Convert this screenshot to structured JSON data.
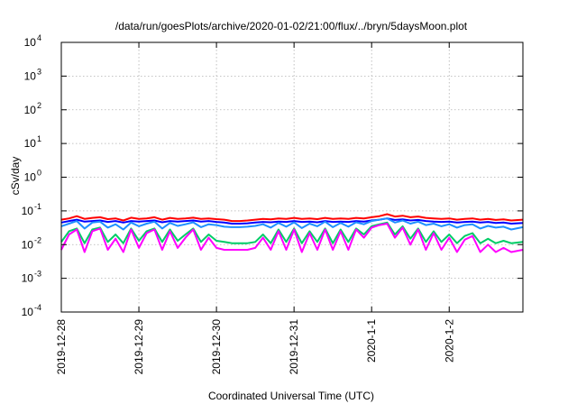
{
  "chart_data": {
    "type": "line",
    "title": "/data/run/goesPlots/archive/2020-01-02/21:00/flux/../bryn/5daysMoon.plot",
    "xlabel": "Coordinated Universal Time (UTC)",
    "ylabel": "cSv/day",
    "yscale": "log",
    "ylim": [
      0.0001,
      10000
    ],
    "xlim": [
      0,
      5.95
    ],
    "grid": true,
    "y_ticks": [
      {
        "value": 0.0001,
        "base": "10",
        "exp": "-4"
      },
      {
        "value": 0.001,
        "base": "10",
        "exp": "-3"
      },
      {
        "value": 0.01,
        "base": "10",
        "exp": "-2"
      },
      {
        "value": 0.1,
        "base": "10",
        "exp": "-1"
      },
      {
        "value": 1,
        "base": "10",
        "exp": "0"
      },
      {
        "value": 10,
        "base": "10",
        "exp": "1"
      },
      {
        "value": 100,
        "base": "10",
        "exp": "2"
      },
      {
        "value": 1000,
        "base": "10",
        "exp": "3"
      },
      {
        "value": 10000,
        "base": "10",
        "exp": "4"
      }
    ],
    "x_ticks": [
      {
        "value": 0,
        "label": "2019-12-28"
      },
      {
        "value": 1,
        "label": "2019-12-29"
      },
      {
        "value": 2,
        "label": "2019-12-30"
      },
      {
        "value": 3,
        "label": "2019-12-31"
      },
      {
        "value": 4,
        "label": "2020-1-1"
      },
      {
        "value": 5,
        "label": "2020-1-2"
      }
    ],
    "series": [
      {
        "color": "#ff0000",
        "x": [
          0,
          0.1,
          0.2,
          0.3,
          0.4,
          0.5,
          0.6,
          0.7,
          0.8,
          0.9,
          1,
          1.1,
          1.2,
          1.3,
          1.4,
          1.5,
          1.6,
          1.7,
          1.8,
          1.9,
          2,
          2.1,
          2.2,
          2.3,
          2.4,
          2.5,
          2.6,
          2.7,
          2.8,
          2.9,
          3,
          3.1,
          3.2,
          3.3,
          3.4,
          3.5,
          3.6,
          3.7,
          3.8,
          3.9,
          4,
          4.1,
          4.2,
          4.3,
          4.4,
          4.5,
          4.6,
          4.7,
          4.8,
          4.9,
          5,
          5.1,
          5.2,
          5.3,
          5.4,
          5.5,
          5.6,
          5.7,
          5.8,
          5.95
        ],
        "values": [
          0.055,
          0.06,
          0.07,
          0.058,
          0.062,
          0.065,
          0.057,
          0.06,
          0.052,
          0.063,
          0.058,
          0.06,
          0.065,
          0.055,
          0.062,
          0.058,
          0.06,
          0.063,
          0.058,
          0.06,
          0.057,
          0.055,
          0.05,
          0.05,
          0.052,
          0.055,
          0.058,
          0.056,
          0.06,
          0.058,
          0.062,
          0.058,
          0.06,
          0.057,
          0.062,
          0.058,
          0.06,
          0.058,
          0.062,
          0.06,
          0.065,
          0.07,
          0.08,
          0.068,
          0.072,
          0.065,
          0.068,
          0.062,
          0.06,
          0.058,
          0.06,
          0.055,
          0.058,
          0.06,
          0.055,
          0.058,
          0.054,
          0.056,
          0.052,
          0.055
        ]
      },
      {
        "color": "#0000ff",
        "x": [
          0,
          0.1,
          0.2,
          0.3,
          0.4,
          0.5,
          0.6,
          0.7,
          0.8,
          0.9,
          1,
          1.1,
          1.2,
          1.3,
          1.4,
          1.5,
          1.6,
          1.7,
          1.8,
          1.9,
          2,
          2.1,
          2.2,
          2.3,
          2.4,
          2.5,
          2.6,
          2.7,
          2.8,
          2.9,
          3,
          3.1,
          3.2,
          3.3,
          3.4,
          3.5,
          3.6,
          3.7,
          3.8,
          3.9,
          4,
          4.1,
          4.2,
          4.3,
          4.4,
          4.5,
          4.6,
          4.7,
          4.8,
          4.9,
          5,
          5.1,
          5.2,
          5.3,
          5.4,
          5.5,
          5.6,
          5.7,
          5.8,
          5.95
        ],
        "values": [
          0.045,
          0.05,
          0.055,
          0.048,
          0.05,
          0.052,
          0.047,
          0.05,
          0.045,
          0.05,
          0.048,
          0.05,
          0.052,
          0.046,
          0.05,
          0.048,
          0.05,
          0.052,
          0.048,
          0.05,
          0.047,
          0.045,
          0.042,
          0.042,
          0.043,
          0.045,
          0.047,
          0.046,
          0.048,
          0.047,
          0.05,
          0.047,
          0.048,
          0.046,
          0.05,
          0.047,
          0.048,
          0.047,
          0.05,
          0.048,
          0.052,
          0.055,
          0.06,
          0.054,
          0.056,
          0.052,
          0.054,
          0.05,
          0.048,
          0.047,
          0.048,
          0.045,
          0.047,
          0.048,
          0.045,
          0.047,
          0.044,
          0.045,
          0.042,
          0.044
        ]
      },
      {
        "color": "#1e90ff",
        "x": [
          0,
          0.1,
          0.2,
          0.3,
          0.4,
          0.5,
          0.6,
          0.7,
          0.8,
          0.9,
          1,
          1.1,
          1.2,
          1.3,
          1.4,
          1.5,
          1.6,
          1.7,
          1.8,
          1.9,
          2,
          2.1,
          2.2,
          2.3,
          2.4,
          2.5,
          2.6,
          2.7,
          2.8,
          2.9,
          3,
          3.1,
          3.2,
          3.3,
          3.4,
          3.5,
          3.6,
          3.7,
          3.8,
          3.9,
          4,
          4.1,
          4.2,
          4.3,
          4.4,
          4.5,
          4.6,
          4.7,
          4.8,
          4.9,
          5,
          5.1,
          5.2,
          5.3,
          5.4,
          5.5,
          5.6,
          5.7,
          5.8,
          5.95
        ],
        "values": [
          0.035,
          0.042,
          0.05,
          0.03,
          0.045,
          0.048,
          0.032,
          0.04,
          0.028,
          0.045,
          0.035,
          0.042,
          0.048,
          0.03,
          0.044,
          0.036,
          0.04,
          0.046,
          0.033,
          0.04,
          0.038,
          0.034,
          0.033,
          0.033,
          0.034,
          0.036,
          0.04,
          0.032,
          0.044,
          0.034,
          0.046,
          0.031,
          0.042,
          0.035,
          0.048,
          0.033,
          0.044,
          0.034,
          0.046,
          0.04,
          0.05,
          0.055,
          0.06,
          0.045,
          0.052,
          0.042,
          0.048,
          0.038,
          0.042,
          0.035,
          0.04,
          0.032,
          0.038,
          0.04,
          0.03,
          0.036,
          0.032,
          0.034,
          0.028,
          0.033
        ]
      },
      {
        "color": "#00cc66",
        "x": [
          0,
          0.1,
          0.2,
          0.3,
          0.4,
          0.5,
          0.6,
          0.7,
          0.8,
          0.9,
          1,
          1.1,
          1.2,
          1.3,
          1.4,
          1.5,
          1.6,
          1.7,
          1.8,
          1.9,
          2,
          2.1,
          2.2,
          2.3,
          2.4,
          2.5,
          2.6,
          2.7,
          2.8,
          2.9,
          3,
          3.1,
          3.2,
          3.3,
          3.4,
          3.5,
          3.6,
          3.7,
          3.8,
          3.9,
          4,
          4.1,
          4.2,
          4.3,
          4.4,
          4.5,
          4.6,
          4.7,
          4.8,
          4.9,
          5,
          5.1,
          5.2,
          5.3,
          5.4,
          5.5,
          5.6,
          5.7,
          5.8,
          5.95
        ],
        "values": [
          0.012,
          0.025,
          0.03,
          0.011,
          0.028,
          0.032,
          0.012,
          0.02,
          0.011,
          0.03,
          0.013,
          0.025,
          0.03,
          0.012,
          0.028,
          0.013,
          0.02,
          0.03,
          0.012,
          0.02,
          0.013,
          0.012,
          0.011,
          0.011,
          0.011,
          0.012,
          0.02,
          0.011,
          0.028,
          0.012,
          0.03,
          0.011,
          0.025,
          0.012,
          0.03,
          0.011,
          0.028,
          0.012,
          0.03,
          0.02,
          0.035,
          0.04,
          0.045,
          0.02,
          0.035,
          0.015,
          0.03,
          0.012,
          0.025,
          0.012,
          0.02,
          0.011,
          0.018,
          0.022,
          0.011,
          0.015,
          0.011,
          0.013,
          0.011,
          0.012
        ]
      },
      {
        "color": "#ff00ff",
        "x": [
          0,
          0.1,
          0.2,
          0.3,
          0.4,
          0.5,
          0.6,
          0.7,
          0.8,
          0.9,
          1,
          1.1,
          1.2,
          1.3,
          1.4,
          1.5,
          1.6,
          1.7,
          1.8,
          1.9,
          2,
          2.1,
          2.2,
          2.3,
          2.4,
          2.5,
          2.6,
          2.7,
          2.8,
          2.9,
          3,
          3.1,
          3.2,
          3.3,
          3.4,
          3.5,
          3.6,
          3.7,
          3.8,
          3.9,
          4,
          4.1,
          4.2,
          4.3,
          4.4,
          4.5,
          4.6,
          4.7,
          4.8,
          4.9,
          5,
          5.1,
          5.2,
          5.3,
          5.4,
          5.5,
          5.6,
          5.7,
          5.8,
          5.95
        ],
        "values": [
          0.007,
          0.02,
          0.028,
          0.006,
          0.025,
          0.03,
          0.007,
          0.015,
          0.006,
          0.028,
          0.008,
          0.022,
          0.028,
          0.007,
          0.025,
          0.008,
          0.016,
          0.028,
          0.007,
          0.016,
          0.008,
          0.007,
          0.007,
          0.007,
          0.007,
          0.008,
          0.016,
          0.007,
          0.025,
          0.007,
          0.028,
          0.006,
          0.022,
          0.007,
          0.028,
          0.007,
          0.025,
          0.007,
          0.028,
          0.016,
          0.032,
          0.038,
          0.042,
          0.016,
          0.032,
          0.01,
          0.028,
          0.007,
          0.022,
          0.007,
          0.016,
          0.006,
          0.014,
          0.018,
          0.006,
          0.01,
          0.006,
          0.008,
          0.006,
          0.007
        ]
      }
    ]
  }
}
